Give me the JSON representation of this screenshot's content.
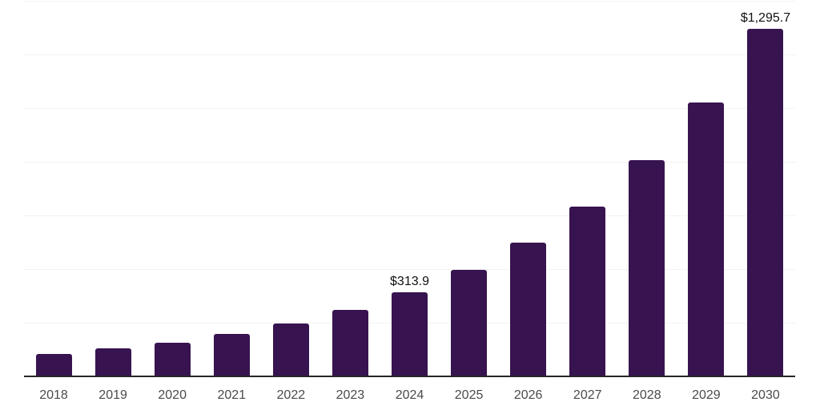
{
  "chart_data": {
    "type": "bar",
    "categories": [
      "2018",
      "2019",
      "2020",
      "2021",
      "2022",
      "2023",
      "2024",
      "2025",
      "2026",
      "2027",
      "2028",
      "2029",
      "2030"
    ],
    "values": [
      84,
      104,
      126,
      158,
      198,
      249,
      313.9,
      396,
      500,
      634,
      805,
      1020,
      1295.7
    ],
    "title": "",
    "xlabel": "",
    "ylabel": "",
    "ylim": [
      0,
      1400
    ],
    "grid_step": 200,
    "grid": true,
    "legend": false,
    "y_axis_labels_visible": false,
    "annotations": [
      {
        "category": "2024",
        "label": "$313.9"
      },
      {
        "category": "2030",
        "label": "$1,295.7"
      }
    ],
    "colors": {
      "bar": "#371350",
      "axis_line": "#262626",
      "gridline": "#f2f2f2",
      "tick_label": "#4a4a4a",
      "annotation_text": "#111111",
      "background": "#ffffff"
    }
  }
}
